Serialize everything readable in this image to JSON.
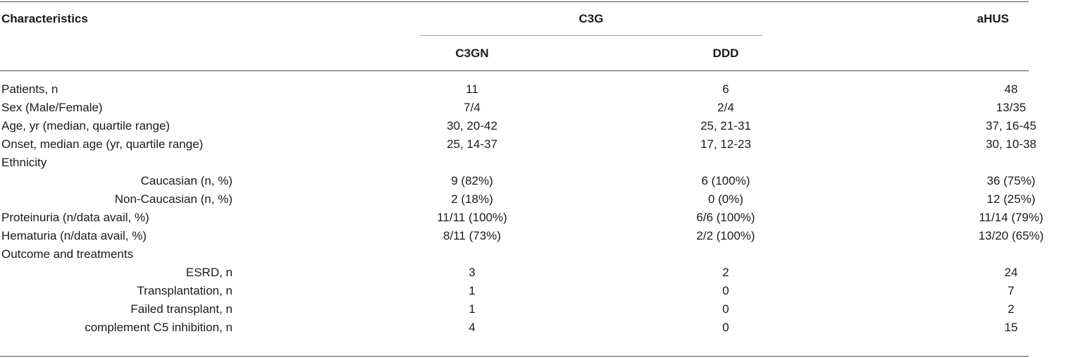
{
  "table": {
    "headers": {
      "characteristics": "Characteristics",
      "c3g": "C3G",
      "c3gn": "C3GN",
      "ddd": "DDD",
      "ahus": "aHUS"
    },
    "rows": [
      {
        "label": "Patients, n",
        "c3gn": "11",
        "ddd": "6",
        "ahus": "48"
      },
      {
        "label": "Sex (Male/Female)",
        "c3gn": "7/4",
        "ddd": "2/4",
        "ahus": "13/35"
      },
      {
        "label": "Age, yr (median, quartile range)",
        "c3gn": "30, 20-42",
        "ddd": "25, 21-31",
        "ahus": "37, 16-45"
      },
      {
        "label": "Onset, median age (yr, quartile range)",
        "c3gn": "25, 14-37",
        "ddd": "17, 12-23",
        "ahus": "30, 10-38"
      },
      {
        "label": "Ethnicity",
        "c3gn": "",
        "ddd": "",
        "ahus": ""
      },
      {
        "label": "Caucasian (n, %)",
        "c3gn": "9 (82%)",
        "ddd": "6 (100%)",
        "ahus": "36 (75%)"
      },
      {
        "label": "Non-Caucasian (n, %)",
        "c3gn": "2 (18%)",
        "ddd": "0 (0%)",
        "ahus": "12 (25%)"
      },
      {
        "label": "Proteinuria (n/data avail, %)",
        "c3gn": "11/11 (100%)",
        "ddd": "6/6 (100%)",
        "ahus": "11/14 (79%)"
      },
      {
        "label": "Hematuria (n/data avail, %)",
        "c3gn": "8/11 (73%)",
        "ddd": "2/2 (100%)",
        "ahus": "13/20 (65%)"
      },
      {
        "label": "Outcome and treatments",
        "c3gn": "",
        "ddd": "",
        "ahus": ""
      },
      {
        "label": "ESRD, n",
        "c3gn": "3",
        "ddd": "2",
        "ahus": "24"
      },
      {
        "label": "Transplantation, n",
        "c3gn": "1",
        "ddd": "0",
        "ahus": "7"
      },
      {
        "label": "Failed transplant, n",
        "c3gn": "1",
        "ddd": "0",
        "ahus": "2"
      },
      {
        "label": "complement C5 inhibition, n",
        "c3gn": "4",
        "ddd": "0",
        "ahus": "15"
      }
    ]
  }
}
